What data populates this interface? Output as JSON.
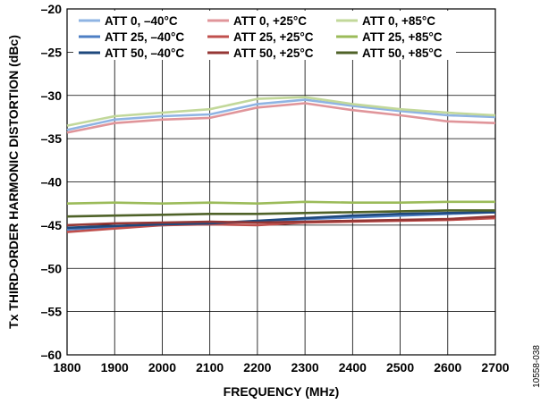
{
  "chart_data": {
    "type": "line",
    "xlabel": "FREQUENCY (MHz)",
    "ylabel": "Tx THIRD-ORDER HARMONIC DISTORTION (dBc)",
    "xlim": [
      1800,
      2700
    ],
    "ylim": [
      -60,
      -20
    ],
    "x_ticks": [
      "1800",
      "1900",
      "2000",
      "2100",
      "2200",
      "2300",
      "2400",
      "2500",
      "2600",
      "2700"
    ],
    "y_ticks": [
      "–20",
      "–25",
      "–30",
      "–35",
      "–40",
      "–45",
      "–50",
      "–55",
      "–60"
    ],
    "grid": true,
    "legend_position": "top",
    "x": [
      1800,
      1900,
      2000,
      2100,
      2200,
      2300,
      2400,
      2500,
      2600,
      2700
    ],
    "series": [
      {
        "name": "ATT 0, –40°C",
        "color": "#8fb4e3",
        "values": [
          -34.0,
          -32.8,
          -32.4,
          -32.2,
          -31.0,
          -30.5,
          -31.2,
          -31.8,
          -32.3,
          -32.5
        ]
      },
      {
        "name": "ATT 0, +25°C",
        "color": "#e0959a",
        "values": [
          -34.3,
          -33.2,
          -32.8,
          -32.6,
          -31.4,
          -30.9,
          -31.7,
          -32.3,
          -33.0,
          -33.2
        ]
      },
      {
        "name": "ATT 0, +85°C",
        "color": "#c2d89a",
        "values": [
          -33.5,
          -32.4,
          -32.0,
          -31.6,
          -30.4,
          -30.2,
          -31.0,
          -31.6,
          -32.0,
          -32.3
        ]
      },
      {
        "name": "ATT 25, –40°C",
        "color": "#4d7fc4",
        "values": [
          -45.5,
          -45.2,
          -45.0,
          -44.8,
          -44.6,
          -44.3,
          -44.1,
          -43.9,
          -43.7,
          -43.5
        ]
      },
      {
        "name": "ATT 25, +25°C",
        "color": "#c0504d",
        "values": [
          -45.8,
          -45.4,
          -45.0,
          -44.9,
          -45.0,
          -44.7,
          -44.6,
          -44.5,
          -44.4,
          -44.2
        ]
      },
      {
        "name": "ATT 25, +85°C",
        "color": "#9bbb59",
        "values": [
          -42.5,
          -42.4,
          -42.5,
          -42.4,
          -42.5,
          -42.3,
          -42.4,
          -42.4,
          -42.3,
          -42.3
        ]
      },
      {
        "name": "ATT 50, –40°C",
        "color": "#1f497d",
        "values": [
          -45.3,
          -45.1,
          -44.9,
          -44.8,
          -44.5,
          -44.2,
          -43.9,
          -43.7,
          -43.6,
          -43.5
        ]
      },
      {
        "name": "ATT 50, +25°C",
        "color": "#953735",
        "values": [
          -45.0,
          -44.8,
          -44.7,
          -44.6,
          -44.7,
          -44.6,
          -44.5,
          -44.4,
          -44.3,
          -44.0
        ]
      },
      {
        "name": "ATT 50, +85°C",
        "color": "#4f6228",
        "values": [
          -44.0,
          -43.9,
          -43.8,
          -43.7,
          -43.7,
          -43.6,
          -43.5,
          -43.4,
          -43.3,
          -43.3
        ]
      }
    ]
  },
  "figure_id": "10558-038"
}
